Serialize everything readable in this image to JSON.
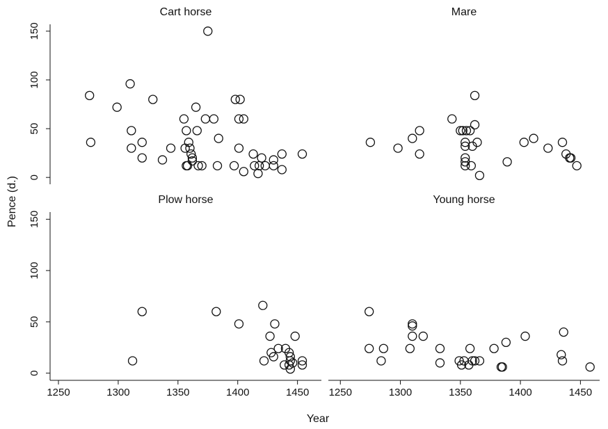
{
  "xlabel": "Year",
  "ylabel": "Pence (d.)",
  "chart_data": [
    {
      "type": "scatter",
      "title": "Cart horse",
      "color": "#111111",
      "x": [
        1276,
        1277,
        1299,
        1310,
        1311,
        1311,
        1320,
        1320,
        1329,
        1337,
        1344,
        1355,
        1357,
        1356,
        1357,
        1358,
        1359,
        1360,
        1361,
        1362,
        1362,
        1365,
        1366,
        1367,
        1370,
        1373,
        1375,
        1380,
        1384,
        1383,
        1398,
        1402,
        1401,
        1401,
        1405,
        1397,
        1405,
        1413,
        1414,
        1417,
        1418,
        1420,
        1423,
        1430,
        1430,
        1437,
        1437,
        1454
      ],
      "values": [
        84,
        36,
        72,
        96,
        48,
        30,
        36,
        20,
        80,
        18,
        30,
        60,
        48,
        30,
        12,
        12,
        36,
        30,
        24,
        20,
        17,
        72,
        48,
        12,
        12,
        60,
        150,
        60,
        40,
        12,
        80,
        80,
        60,
        30,
        60,
        12,
        6,
        24,
        12,
        4,
        12,
        20,
        12,
        18,
        12,
        24,
        8,
        24
      ],
      "xlim": [
        1243,
        1470
      ],
      "ylim": [
        -7,
        157
      ],
      "yticks": [
        0,
        50,
        100,
        150
      ]
    },
    {
      "type": "scatter",
      "title": "Mare",
      "color": "#111111",
      "x": [
        1275,
        1298,
        1310,
        1316,
        1316,
        1343,
        1350,
        1352,
        1355,
        1358,
        1354,
        1354,
        1354,
        1354,
        1354,
        1359,
        1360,
        1362,
        1362,
        1364,
        1366,
        1389,
        1403,
        1411,
        1423,
        1435,
        1438,
        1441,
        1442,
        1447
      ],
      "values": [
        36,
        30,
        40,
        48,
        24,
        60,
        48,
        48,
        48,
        48,
        36,
        32,
        20,
        16,
        12,
        12,
        32,
        54,
        84,
        36,
        2,
        16,
        36,
        40,
        30,
        36,
        24,
        20,
        20,
        12
      ],
      "xlim": [
        1240,
        1466
      ],
      "ylim": [
        -7,
        157
      ]
    },
    {
      "type": "scatter",
      "title": "Plow horse",
      "color": "#111111",
      "x": [
        1312,
        1320,
        1382,
        1401,
        1421,
        1422,
        1427,
        1428,
        1431,
        1430,
        1434,
        1440,
        1439,
        1443,
        1444,
        1443,
        1444,
        1444,
        1448,
        1454,
        1454,
        1446
      ],
      "values": [
        12,
        60,
        60,
        48,
        66,
        12,
        36,
        20,
        48,
        16,
        24,
        24,
        8,
        20,
        12,
        8,
        4,
        16,
        36,
        12,
        8,
        10
      ],
      "xlim": [
        1243,
        1470
      ],
      "ylim": [
        -7,
        157
      ],
      "yticks": [
        0,
        50,
        100,
        150
      ],
      "xticks": [
        1250,
        1300,
        1350,
        1400,
        1450
      ]
    },
    {
      "type": "scatter",
      "title": "Young horse",
      "color": "#111111",
      "x": [
        1274,
        1274,
        1284,
        1286,
        1308,
        1310,
        1310,
        1310,
        1319,
        1333,
        1333,
        1349,
        1351,
        1353,
        1357,
        1358,
        1360,
        1362,
        1366,
        1378,
        1384,
        1385,
        1388,
        1404,
        1434,
        1435,
        1436,
        1458
      ],
      "values": [
        60,
        24,
        12,
        24,
        24,
        48,
        46,
        36,
        36,
        24,
        10,
        12,
        8,
        12,
        8,
        24,
        12,
        12,
        12,
        24,
        6,
        6,
        30,
        36,
        18,
        12,
        40,
        6
      ],
      "xlim": [
        1240,
        1466
      ],
      "ylim": [
        -7,
        157
      ],
      "xticks": [
        1250,
        1300,
        1350,
        1400,
        1450
      ]
    }
  ]
}
